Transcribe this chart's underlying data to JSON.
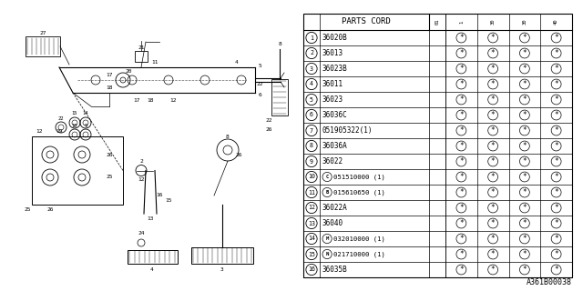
{
  "figure_code": "A361B00038",
  "bg_color": "#ffffff",
  "table_header": "PARTS CORD",
  "col_header_labels": [
    "01",
    "1",
    "30",
    "30",
    "40"
  ],
  "rows": [
    {
      "num": "1",
      "part": "36020B",
      "prefix": "",
      "marks": [
        " ",
        "*",
        "*",
        "*",
        "*"
      ]
    },
    {
      "num": "2",
      "part": "36013",
      "prefix": "",
      "marks": [
        " ",
        "*",
        "*",
        "*",
        "*"
      ]
    },
    {
      "num": "3",
      "part": "36023B",
      "prefix": "",
      "marks": [
        " ",
        "*",
        "*",
        "*",
        "*"
      ]
    },
    {
      "num": "4",
      "part": "36011",
      "prefix": "",
      "marks": [
        " ",
        "*",
        "*",
        "*",
        "*"
      ]
    },
    {
      "num": "5",
      "part": "36023",
      "prefix": "",
      "marks": [
        " ",
        "*",
        "*",
        "*",
        "*"
      ]
    },
    {
      "num": "6",
      "part": "36036C",
      "prefix": "",
      "marks": [
        " ",
        "*",
        "*",
        "*",
        "*"
      ]
    },
    {
      "num": "7",
      "part": "051905322(1)",
      "prefix": "",
      "marks": [
        " ",
        "*",
        "*",
        "*",
        "*"
      ]
    },
    {
      "num": "8",
      "part": "36036A",
      "prefix": "",
      "marks": [
        " ",
        "*",
        "*",
        "*",
        "*"
      ]
    },
    {
      "num": "9",
      "part": "36022",
      "prefix": "",
      "marks": [
        " ",
        "*",
        "*",
        "*",
        "*"
      ]
    },
    {
      "num": "10",
      "part": "051510000 (1)",
      "prefix": "C",
      "marks": [
        " ",
        "*",
        "*",
        "*",
        "*"
      ]
    },
    {
      "num": "11",
      "part": "015610650 (1)",
      "prefix": "B",
      "marks": [
        " ",
        "*",
        "*",
        "*",
        "*"
      ]
    },
    {
      "num": "12",
      "part": "36022A",
      "prefix": "",
      "marks": [
        " ",
        "*",
        "*",
        "*",
        "*"
      ]
    },
    {
      "num": "13",
      "part": "36040",
      "prefix": "",
      "marks": [
        " ",
        "*",
        "*",
        "*",
        "*"
      ]
    },
    {
      "num": "14",
      "part": "032010000 (1)",
      "prefix": "M",
      "marks": [
        " ",
        "*",
        "*",
        "*",
        "*"
      ]
    },
    {
      "num": "15",
      "part": "021710000 (1)",
      "prefix": "N",
      "marks": [
        " ",
        "*",
        "*",
        "*",
        "*"
      ]
    },
    {
      "num": "16",
      "part": "36035B",
      "prefix": "",
      "marks": [
        " ",
        "*",
        "*",
        "*",
        "*"
      ]
    }
  ],
  "line_color": "#000000",
  "text_color": "#000000",
  "diagram_color": "#000000"
}
